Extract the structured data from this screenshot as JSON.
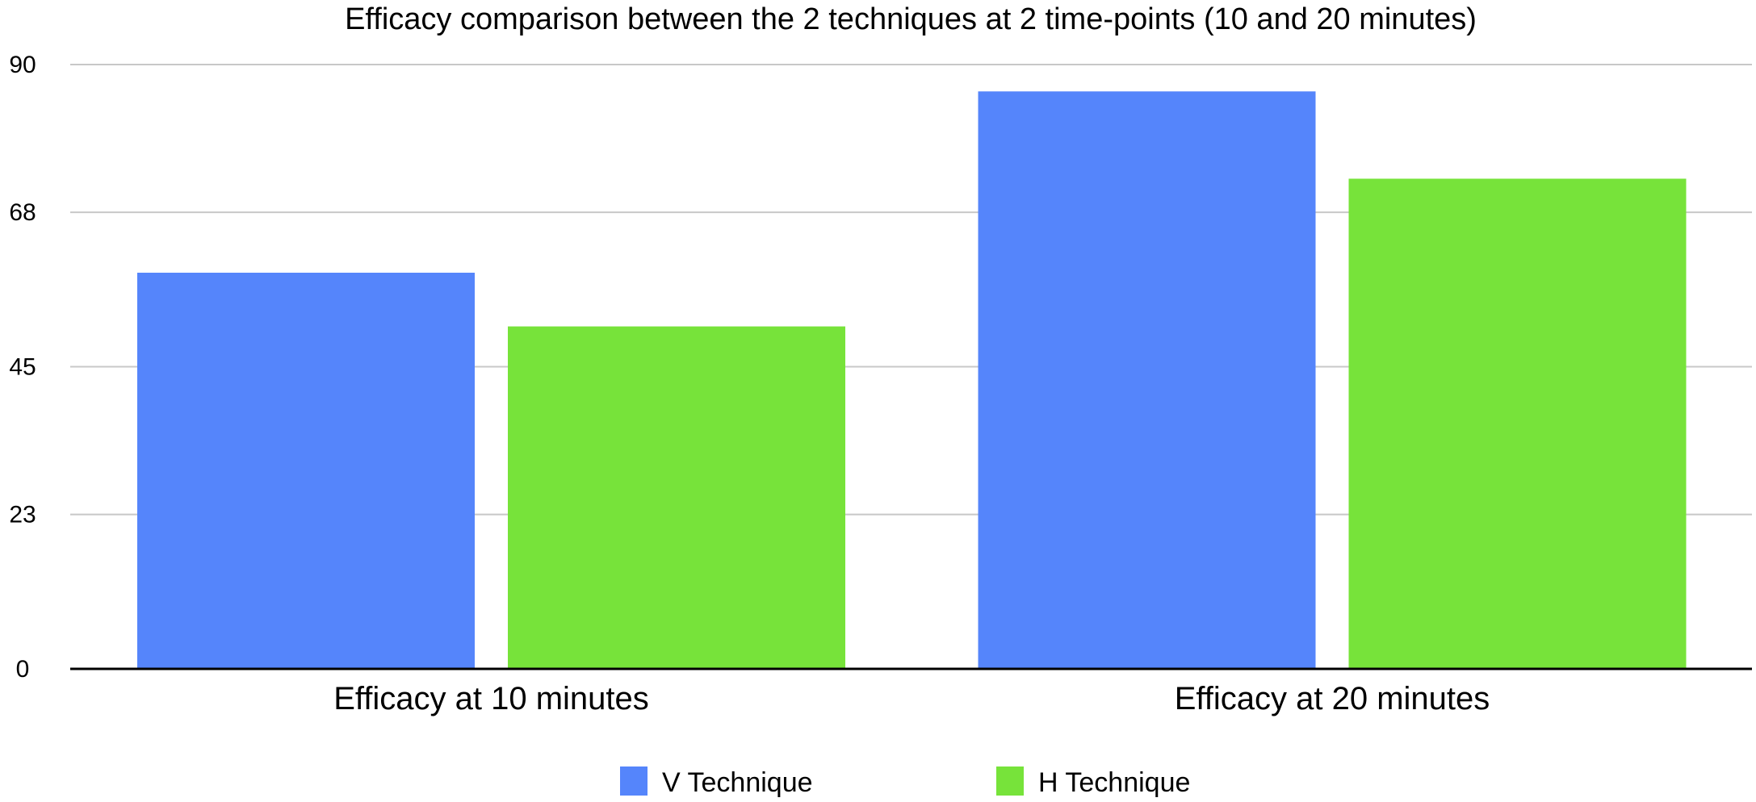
{
  "chart_data": {
    "type": "bar",
    "title": "Efficacy comparison between the 2 techniques at 2 time-points (10 and 20 minutes)",
    "xlabel": "",
    "ylabel": "",
    "categories": [
      "Efficacy at 10 minutes",
      "Efficacy at 20 minutes"
    ],
    "series": [
      {
        "name": "V Technique",
        "color": "#5585fb",
        "values": [
          59,
          86
        ]
      },
      {
        "name": "H Technique",
        "color": "#77e33a",
        "values": [
          51,
          73
        ]
      }
    ],
    "ylim": [
      0,
      90
    ],
    "yticks": [
      "0",
      "23",
      "45",
      "68",
      "90"
    ],
    "grid": true,
    "legend_position": "bottom"
  }
}
